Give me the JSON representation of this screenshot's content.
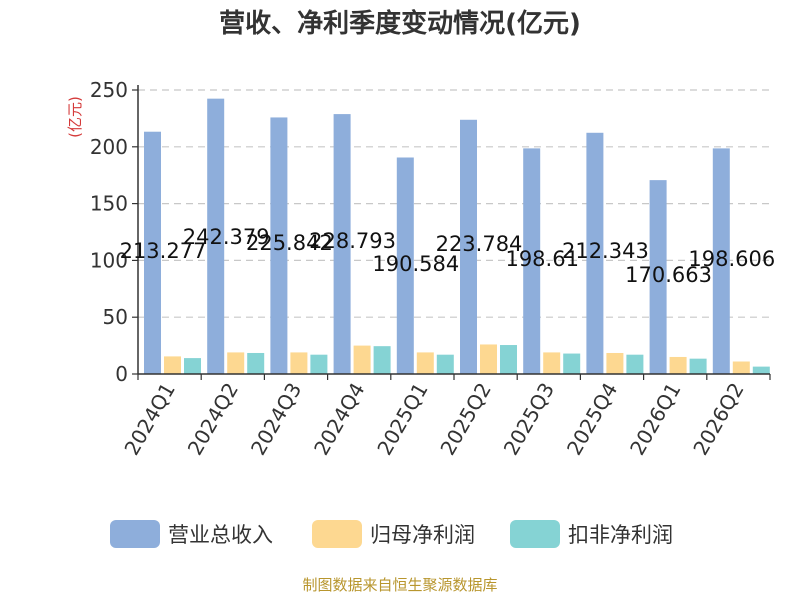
{
  "chart_data": {
    "type": "bar",
    "title": "营收、净利季度变动情况(亿元)",
    "ylabel": "(亿元)",
    "xlabel": "",
    "ylim": [
      0,
      250
    ],
    "yticks": [
      0,
      50,
      100,
      150,
      200,
      250
    ],
    "grid": true,
    "legend_position": "bottom",
    "categories": [
      "2024Q1",
      "2024Q2",
      "2024Q3",
      "2024Q4",
      "2025Q1",
      "2025Q2",
      "2025Q3",
      "2025Q4",
      "2026Q1",
      "2026Q2"
    ],
    "series": [
      {
        "name": "营业总收入",
        "color": "#8eaedb",
        "values": [
          213.277,
          242.379,
          225.842,
          228.793,
          190.584,
          223.784,
          198.61,
          212.343,
          170.663,
          198.606
        ]
      },
      {
        "name": "归母净利润",
        "color": "#fdd891",
        "values": [
          15.5,
          19.0,
          19.0,
          25.0,
          19.0,
          26.0,
          19.0,
          18.5,
          15.0,
          11.0
        ]
      },
      {
        "name": "扣非净利润",
        "color": "#85d3d4",
        "values": [
          14.0,
          18.5,
          17.0,
          24.5,
          17.0,
          25.5,
          18.0,
          17.0,
          13.5,
          6.5
        ]
      }
    ],
    "data_labels": [
      "213.277",
      "242.379",
      "225.842",
      "228.793",
      "190.584",
      "223.784",
      "198.61",
      "212.343",
      "170.663",
      "198.606"
    ]
  },
  "footer": {
    "source": "制图数据来自恒生聚源数据库"
  }
}
